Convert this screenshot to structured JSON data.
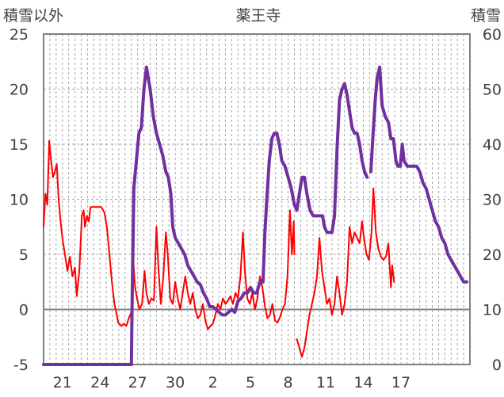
{
  "chart_data": {
    "type": "line",
    "title": "薬王寺",
    "left_axis_label": "積雪以外",
    "right_axis_label": "積雪",
    "y_left_range": [
      -5,
      25
    ],
    "y_left_ticks": [
      "25",
      "20",
      "15",
      "10",
      "5",
      "0",
      "-5"
    ],
    "y_right_range": [
      0,
      60
    ],
    "y_right_ticks": [
      "60",
      "50",
      "40",
      "30",
      "20",
      "10",
      "0"
    ],
    "x_ticks": [
      "21",
      "24",
      "27",
      "30",
      "2",
      "5",
      "8",
      "11",
      "14",
      "17"
    ],
    "grid": true,
    "series": [
      {
        "axis": "left",
        "color": "#ff0000",
        "points": [
          [
            0,
            7.5
          ],
          [
            0.3,
            10.5
          ],
          [
            0.6,
            9.5
          ],
          [
            0.9,
            15.3
          ],
          [
            1.2,
            13.5
          ],
          [
            1.5,
            12.0
          ],
          [
            1.8,
            12.5
          ],
          [
            2.1,
            13.2
          ],
          [
            2.4,
            10.0
          ],
          [
            2.7,
            8.0
          ],
          [
            3.0,
            6.5
          ],
          [
            3.4,
            5.0
          ],
          [
            3.8,
            3.5
          ],
          [
            4.2,
            4.8
          ],
          [
            4.6,
            3.0
          ],
          [
            5.0,
            3.8
          ],
          [
            5.3,
            1.2
          ],
          [
            5.7,
            3.5
          ],
          [
            6.1,
            8.5
          ],
          [
            6.4,
            9.0
          ],
          [
            6.6,
            7.5
          ],
          [
            6.9,
            8.5
          ],
          [
            7.2,
            8.0
          ],
          [
            7.5,
            9.3
          ],
          [
            7.8,
            9.3
          ],
          [
            8.2,
            9.3
          ],
          [
            8.7,
            9.3
          ],
          [
            9.2,
            9.3
          ],
          [
            9.7,
            8.8
          ],
          [
            10.1,
            7.5
          ],
          [
            10.5,
            5.0
          ],
          [
            10.9,
            2.5
          ],
          [
            11.3,
            0.5
          ],
          [
            11.6,
            -0.3
          ],
          [
            11.9,
            -1.2
          ],
          [
            12.4,
            -1.5
          ],
          [
            12.8,
            -1.3
          ],
          [
            13.2,
            -1.5
          ],
          [
            13.6,
            -0.8
          ],
          [
            14.0,
            -0.2
          ],
          [
            14.3,
            4.5
          ],
          [
            14.6,
            2.0
          ],
          [
            14.9,
            1.0
          ],
          [
            15.3,
            0.0
          ],
          [
            15.7,
            0.5
          ],
          [
            16.1,
            3.5
          ],
          [
            16.4,
            1.5
          ],
          [
            16.8,
            0.5
          ],
          [
            17.2,
            1.0
          ],
          [
            17.6,
            0.8
          ],
          [
            18.0,
            7.5
          ],
          [
            18.3,
            4.0
          ],
          [
            18.7,
            0.5
          ],
          [
            19.1,
            3.0
          ],
          [
            19.5,
            7.0
          ],
          [
            19.8,
            5.0
          ],
          [
            20.2,
            1.0
          ],
          [
            20.6,
            0.5
          ],
          [
            21.0,
            2.5
          ],
          [
            21.4,
            1.0
          ],
          [
            21.8,
            0.0
          ],
          [
            22.2,
            1.5
          ],
          [
            22.6,
            3.0
          ],
          [
            23.0,
            1.5
          ],
          [
            23.4,
            0.5
          ],
          [
            23.8,
            1.5
          ],
          [
            24.2,
            0.0
          ],
          [
            24.6,
            -0.8
          ],
          [
            25.0,
            -0.5
          ],
          [
            25.4,
            0.5
          ],
          [
            25.8,
            -1.0
          ],
          [
            26.2,
            -1.8
          ],
          [
            26.6,
            -1.5
          ],
          [
            27.0,
            -1.3
          ],
          [
            27.4,
            -0.5
          ],
          [
            27.8,
            0.5
          ],
          [
            28.2,
            0.0
          ],
          [
            28.6,
            1.0
          ],
          [
            29.0,
            0.5
          ],
          [
            29.4,
            0.8
          ],
          [
            29.8,
            1.2
          ],
          [
            30.2,
            0.5
          ],
          [
            30.6,
            1.5
          ],
          [
            31.0,
            1.0
          ],
          [
            31.4,
            3.0
          ],
          [
            31.8,
            7.0
          ],
          [
            32.1,
            3.5
          ],
          [
            32.5,
            1.0
          ],
          [
            32.9,
            0.5
          ],
          [
            33.3,
            1.5
          ],
          [
            33.7,
            0.0
          ],
          [
            34.1,
            1.0
          ],
          [
            34.5,
            3.0
          ],
          [
            34.9,
            2.0
          ],
          [
            35.3,
            0.3
          ],
          [
            35.7,
            -0.8
          ],
          [
            36.1,
            -0.5
          ],
          [
            36.5,
            0.5
          ],
          [
            36.9,
            -1.0
          ],
          [
            37.3,
            -1.2
          ],
          [
            37.7,
            -0.7
          ],
          [
            38.1,
            0.0
          ],
          [
            38.5,
            0.5
          ],
          [
            38.9,
            3.0
          ],
          [
            39.3,
            9.0
          ],
          [
            39.6,
            5.0
          ],
          [
            39.9,
            8.0
          ],
          [
            40.0,
            5.0
          ],
          [
            40.3,
            null
          ],
          [
            40.4,
            -2.7
          ],
          [
            40.8,
            -3.5
          ],
          [
            41.2,
            -4.3
          ],
          [
            41.6,
            -3.5
          ],
          [
            42.0,
            -2.0
          ],
          [
            42.4,
            -0.5
          ],
          [
            42.8,
            0.5
          ],
          [
            43.2,
            1.5
          ],
          [
            43.6,
            3.0
          ],
          [
            44.0,
            6.5
          ],
          [
            44.4,
            3.5
          ],
          [
            44.8,
            2.0
          ],
          [
            45.2,
            0.5
          ],
          [
            45.6,
            1.0
          ],
          [
            46.0,
            -0.5
          ],
          [
            46.4,
            0.5
          ],
          [
            46.8,
            3.0
          ],
          [
            47.2,
            1.5
          ],
          [
            47.6,
            -0.5
          ],
          [
            48.0,
            0.5
          ],
          [
            48.4,
            2.5
          ],
          [
            48.8,
            7.5
          ],
          [
            49.2,
            6.0
          ],
          [
            49.6,
            7.0
          ],
          [
            50.0,
            6.5
          ],
          [
            50.4,
            6.0
          ],
          [
            50.8,
            8.0
          ],
          [
            51.1,
            6.5
          ],
          [
            51.5,
            5.0
          ],
          [
            51.9,
            4.5
          ],
          [
            52.3,
            7.0
          ],
          [
            52.6,
            11.0
          ],
          [
            53.0,
            7.0
          ],
          [
            53.4,
            5.5
          ],
          [
            53.8,
            4.8
          ],
          [
            54.2,
            4.5
          ],
          [
            54.6,
            4.8
          ],
          [
            55.0,
            6.0
          ],
          [
            55.4,
            2.0
          ],
          [
            55.6,
            4.0
          ],
          [
            55.9,
            2.5
          ]
        ]
      },
      {
        "axis": "right",
        "color": "#7030a0",
        "points": [
          [
            0,
            0
          ],
          [
            4,
            0
          ],
          [
            8,
            0
          ],
          [
            12,
            0
          ],
          [
            14.0,
            0
          ],
          [
            14.1,
            10
          ],
          [
            14.4,
            32
          ],
          [
            14.8,
            37
          ],
          [
            15.2,
            42
          ],
          [
            15.6,
            43
          ],
          [
            16.0,
            50
          ],
          [
            16.4,
            54
          ],
          [
            16.7,
            52
          ],
          [
            17.0,
            50
          ],
          [
            17.5,
            45
          ],
          [
            18.0,
            42
          ],
          [
            18.5,
            40
          ],
          [
            19.0,
            38
          ],
          [
            19.5,
            35
          ],
          [
            19.9,
            34
          ],
          [
            20.3,
            31
          ],
          [
            20.6,
            25
          ],
          [
            21.0,
            23
          ],
          [
            21.5,
            22
          ],
          [
            22.0,
            21
          ],
          [
            22.5,
            20
          ],
          [
            23.0,
            18
          ],
          [
            23.5,
            17
          ],
          [
            24.0,
            16
          ],
          [
            24.5,
            15
          ],
          [
            25.0,
            14.5
          ],
          [
            25.5,
            13
          ],
          [
            26.0,
            12
          ],
          [
            26.5,
            10.5
          ],
          [
            27.0,
            10.5
          ],
          [
            27.5,
            10
          ],
          [
            28.0,
            9.5
          ],
          [
            28.5,
            9
          ],
          [
            29.0,
            9
          ],
          [
            29.5,
            9.5
          ],
          [
            30.0,
            10
          ],
          [
            30.5,
            9.5
          ],
          [
            31.0,
            11.5
          ],
          [
            31.5,
            12
          ],
          [
            32.0,
            13
          ],
          [
            32.5,
            13
          ],
          [
            33.0,
            14
          ],
          [
            33.5,
            13
          ],
          [
            34.0,
            13
          ],
          [
            34.5,
            15
          ],
          [
            35.0,
            15
          ],
          [
            35.3,
            24
          ],
          [
            35.6,
            30
          ],
          [
            36.0,
            37
          ],
          [
            36.4,
            41
          ],
          [
            36.8,
            42
          ],
          [
            37.2,
            42
          ],
          [
            37.6,
            40
          ],
          [
            38.0,
            37
          ],
          [
            38.5,
            36
          ],
          [
            39.0,
            34
          ],
          [
            39.5,
            32
          ],
          [
            40.0,
            29
          ],
          [
            40.4,
            28
          ],
          [
            40.8,
            31
          ],
          [
            41.2,
            34
          ],
          [
            41.6,
            34
          ],
          [
            42.0,
            31
          ],
          [
            42.5,
            28
          ],
          [
            43.0,
            27
          ],
          [
            43.5,
            27
          ],
          [
            44.0,
            27
          ],
          [
            44.5,
            27
          ],
          [
            44.8,
            25
          ],
          [
            45.2,
            24
          ],
          [
            45.6,
            24
          ],
          [
            46.0,
            24
          ],
          [
            46.4,
            27
          ],
          [
            46.8,
            39
          ],
          [
            47.2,
            48
          ],
          [
            47.6,
            50
          ],
          [
            48.0,
            51
          ],
          [
            48.4,
            49
          ],
          [
            48.8,
            46
          ],
          [
            49.2,
            43
          ],
          [
            49.6,
            42
          ],
          [
            50.0,
            42
          ],
          [
            50.4,
            40
          ],
          [
            50.8,
            37
          ],
          [
            51.2,
            35
          ],
          [
            51.6,
            34
          ],
          [
            51.9,
            null
          ],
          [
            52.2,
            35
          ],
          [
            52.5,
            41
          ],
          [
            52.9,
            48
          ],
          [
            53.2,
            52
          ],
          [
            53.6,
            54
          ],
          [
            54.0,
            47
          ],
          [
            54.5,
            45
          ],
          [
            55.0,
            44
          ],
          [
            55.4,
            41
          ],
          [
            55.8,
            41
          ],
          [
            56.2,
            37
          ],
          [
            56.5,
            36
          ],
          [
            56.9,
            36
          ],
          [
            57.2,
            40
          ],
          [
            57.5,
            37
          ],
          [
            58.0,
            36
          ],
          [
            58.5,
            36
          ],
          [
            59.0,
            36
          ],
          [
            59.5,
            36
          ],
          [
            60.0,
            35
          ],
          [
            60.5,
            33
          ],
          [
            61.0,
            32
          ],
          [
            61.5,
            30
          ],
          [
            62.0,
            28
          ],
          [
            62.5,
            26
          ],
          [
            63.0,
            25
          ],
          [
            63.5,
            23
          ],
          [
            64.0,
            22
          ],
          [
            64.5,
            20
          ],
          [
            65.0,
            19
          ],
          [
            65.5,
            18
          ],
          [
            66.0,
            17
          ],
          [
            66.5,
            16
          ],
          [
            67.0,
            15
          ],
          [
            67.5,
            15
          ]
        ]
      }
    ]
  }
}
